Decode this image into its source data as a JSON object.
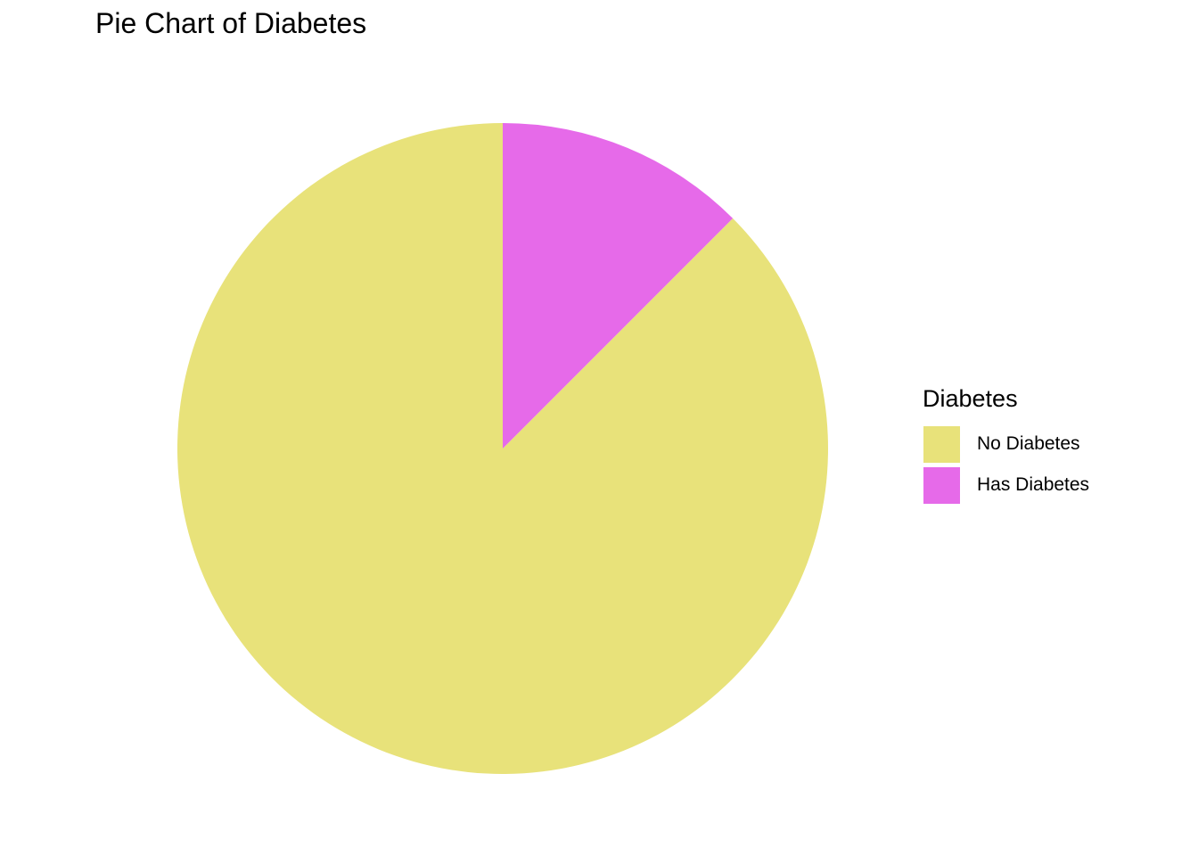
{
  "chart_data": {
    "type": "pie",
    "title": "Pie Chart of Diabetes",
    "legend_title": "Diabetes",
    "legend_placement": "right",
    "start_angle": "12 o'clock",
    "direction": "counterclockwise",
    "slices": [
      {
        "label": "No Diabetes",
        "value": 87.5,
        "color": "#E8E27A"
      },
      {
        "label": "Has Diabetes",
        "value": 12.5,
        "color": "#E66AE9"
      }
    ]
  }
}
